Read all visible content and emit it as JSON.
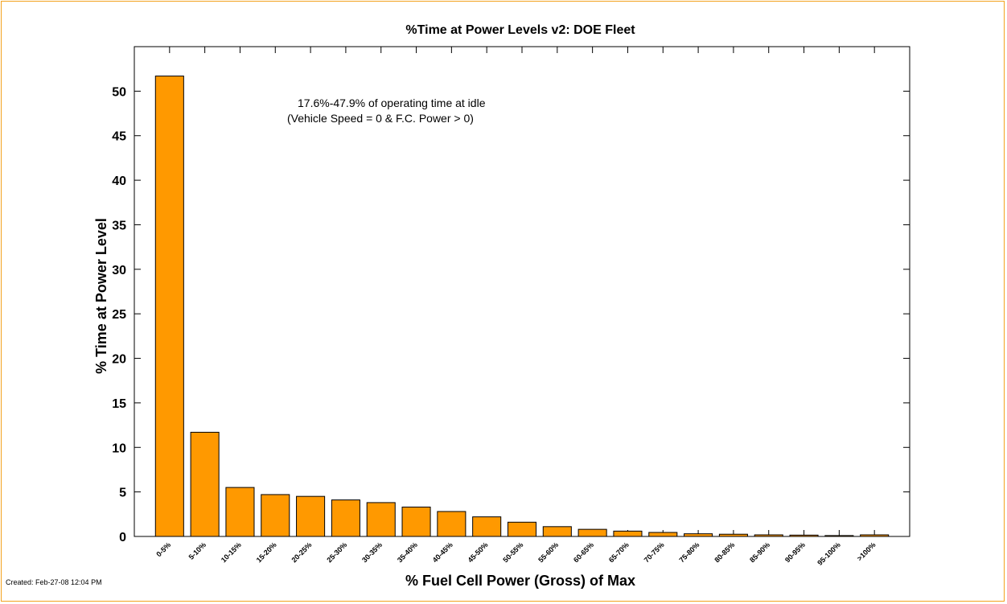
{
  "footer": {
    "created": "Created: Feb-27-08 12:04 PM"
  },
  "colors": {
    "bar_fill": "#ff9900",
    "frame_border": "#f3a21f"
  },
  "chart_data": {
    "type": "bar",
    "title": "%Time at Power Levels v2: DOE Fleet",
    "xlabel": "% Fuel Cell Power (Gross) of Max",
    "ylabel": "% Time at Power Level",
    "categories": [
      "0-5%",
      "5-10%",
      "10-15%",
      "15-20%",
      "20-25%",
      "25-30%",
      "30-35%",
      "35-40%",
      "40-45%",
      "45-50%",
      "50-55%",
      "55-60%",
      "60-65%",
      "65-70%",
      "70-75%",
      "75-80%",
      "80-85%",
      "85-90%",
      "90-95%",
      "95-100%",
      ">100%"
    ],
    "values": [
      51.7,
      11.7,
      5.5,
      4.7,
      4.5,
      4.1,
      3.8,
      3.3,
      2.8,
      2.2,
      1.6,
      1.1,
      0.8,
      0.6,
      0.45,
      0.3,
      0.25,
      0.18,
      0.15,
      0.1,
      0.18
    ],
    "ylim": [
      0,
      55
    ],
    "yticks": [
      0,
      5,
      10,
      15,
      20,
      25,
      30,
      35,
      40,
      45,
      50
    ],
    "grid": false,
    "legend": "none",
    "annotations": [
      "17.6%-47.9% of operating time at idle",
      "(Vehicle Speed = 0 & F.C. Power > 0)"
    ]
  }
}
